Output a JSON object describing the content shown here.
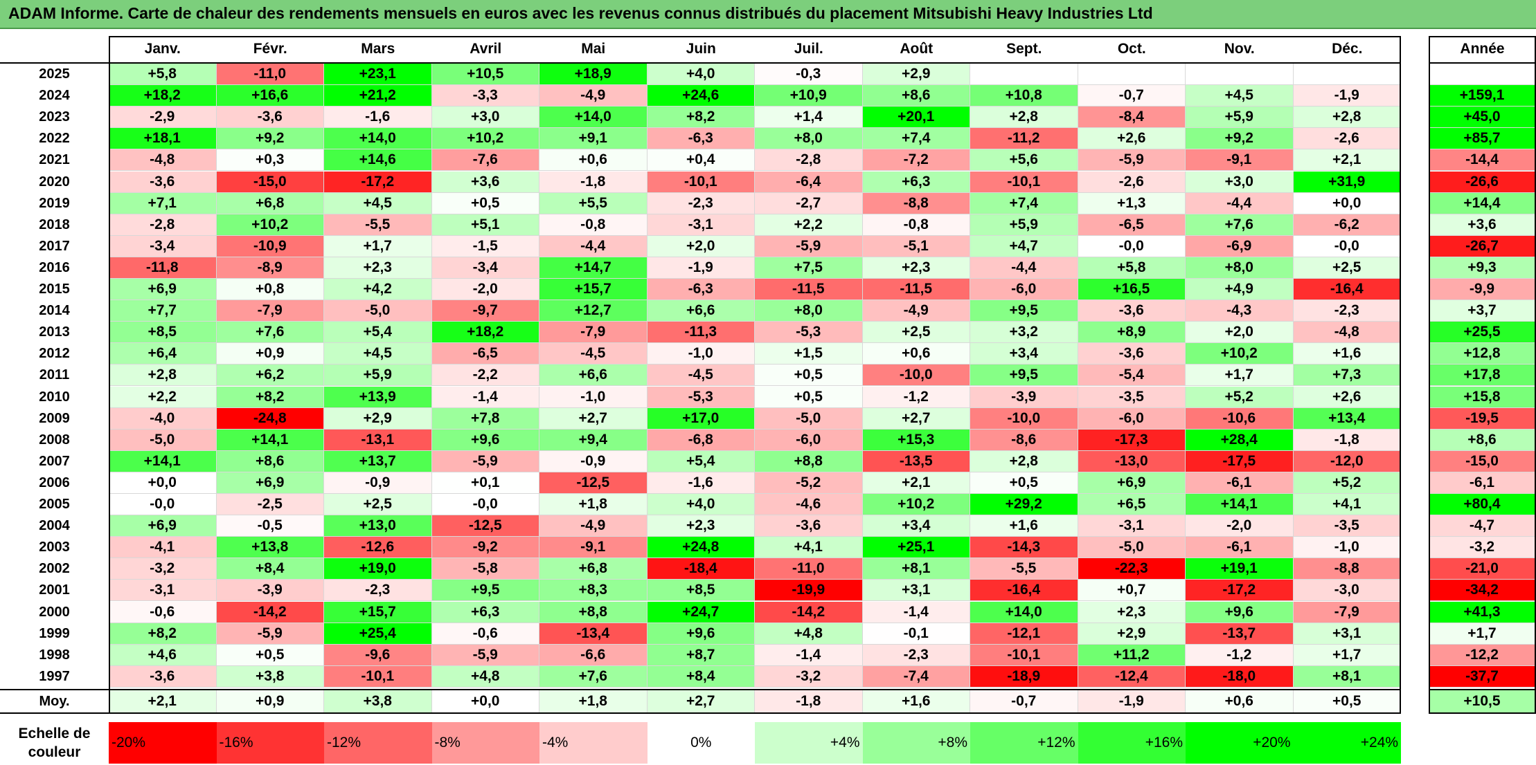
{
  "title": "ADAM Informe. Carte de chaleur des rendements mensuels en euros avec les revenus connus distribués du placement Mitsubishi Heavy Industries Ltd",
  "colors": {
    "title_bg": "#7ccf7c",
    "pos_strong": "#00ff00",
    "neg_strong": "#ff0000",
    "neutral": "#ffffff"
  },
  "chart_data": {
    "type": "heatmap",
    "title": "ADAM Informe. Carte de chaleur des rendements mensuels en euros avec les revenus connus distribués du placement Mitsubishi Heavy Industries Ltd",
    "columns": [
      "Janv.",
      "Févr.",
      "Mars",
      "Avril",
      "Mai",
      "Juin",
      "Juil.",
      "Août",
      "Sept.",
      "Oct.",
      "Nov.",
      "Déc."
    ],
    "year_header": "Année",
    "rows": [
      {
        "year": "2025",
        "values": [
          "+5,8",
          "-11,0",
          "+23,1",
          "+10,5",
          "+18,9",
          "+4,0",
          "-0,3",
          "+2,9",
          "",
          "",
          "",
          ""
        ],
        "annual": ""
      },
      {
        "year": "2024",
        "values": [
          "+18,2",
          "+16,6",
          "+21,2",
          "-3,3",
          "-4,9",
          "+24,6",
          "+10,9",
          "+8,6",
          "+10,8",
          "-0,7",
          "+4,5",
          "-1,9"
        ],
        "annual": "+159,1"
      },
      {
        "year": "2023",
        "values": [
          "-2,9",
          "-3,6",
          "-1,6",
          "+3,0",
          "+14,0",
          "+8,2",
          "+1,4",
          "+20,1",
          "+2,8",
          "-8,4",
          "+5,9",
          "+2,8"
        ],
        "annual": "+45,0"
      },
      {
        "year": "2022",
        "values": [
          "+18,1",
          "+9,2",
          "+14,0",
          "+10,2",
          "+9,1",
          "-6,3",
          "+8,0",
          "+7,4",
          "-11,2",
          "+2,6",
          "+9,2",
          "-2,6"
        ],
        "annual": "+85,7"
      },
      {
        "year": "2021",
        "values": [
          "-4,8",
          "+0,3",
          "+14,6",
          "-7,6",
          "+0,6",
          "+0,4",
          "-2,8",
          "-7,2",
          "+5,6",
          "-5,9",
          "-9,1",
          "+2,1"
        ],
        "annual": "-14,4"
      },
      {
        "year": "2020",
        "values": [
          "-3,6",
          "-15,0",
          "-17,2",
          "+3,6",
          "-1,8",
          "-10,1",
          "-6,4",
          "+6,3",
          "-10,1",
          "-2,6",
          "+3,0",
          "+31,9"
        ],
        "annual": "-26,6"
      },
      {
        "year": "2019",
        "values": [
          "+7,1",
          "+6,8",
          "+4,5",
          "+0,5",
          "+5,5",
          "-2,3",
          "-2,7",
          "-8,8",
          "+7,4",
          "+1,3",
          "-4,4",
          "+0,0"
        ],
        "annual": "+14,4"
      },
      {
        "year": "2018",
        "values": [
          "-2,8",
          "+10,2",
          "-5,5",
          "+5,1",
          "-0,8",
          "-3,1",
          "+2,2",
          "-0,8",
          "+5,9",
          "-6,5",
          "+7,6",
          "-6,2"
        ],
        "annual": "+3,6"
      },
      {
        "year": "2017",
        "values": [
          "-3,4",
          "-10,9",
          "+1,7",
          "-1,5",
          "-4,4",
          "+2,0",
          "-5,9",
          "-5,1",
          "+4,7",
          "-0,0",
          "-6,9",
          "-0,0"
        ],
        "annual": "-26,7"
      },
      {
        "year": "2016",
        "values": [
          "-11,8",
          "-8,9",
          "+2,3",
          "-3,4",
          "+14,7",
          "-1,9",
          "+7,5",
          "+2,3",
          "-4,4",
          "+5,8",
          "+8,0",
          "+2,5"
        ],
        "annual": "+9,3"
      },
      {
        "year": "2015",
        "values": [
          "+6,9",
          "+0,8",
          "+4,2",
          "-2,0",
          "+15,7",
          "-6,3",
          "-11,5",
          "-11,5",
          "-6,0",
          "+16,5",
          "+4,9",
          "-16,4"
        ],
        "annual": "-9,9"
      },
      {
        "year": "2014",
        "values": [
          "+7,7",
          "-7,9",
          "-5,0",
          "-9,7",
          "+12,7",
          "+6,6",
          "+8,0",
          "-4,9",
          "+9,5",
          "-3,6",
          "-4,3",
          "-2,3"
        ],
        "annual": "+3,7"
      },
      {
        "year": "2013",
        "values": [
          "+8,5",
          "+7,6",
          "+5,4",
          "+18,2",
          "-7,9",
          "-11,3",
          "-5,3",
          "+2,5",
          "+3,2",
          "+8,9",
          "+2,0",
          "-4,8"
        ],
        "annual": "+25,5"
      },
      {
        "year": "2012",
        "values": [
          "+6,4",
          "+0,9",
          "+4,5",
          "-6,5",
          "-4,5",
          "-1,0",
          "+1,5",
          "+0,6",
          "+3,4",
          "-3,6",
          "+10,2",
          "+1,6"
        ],
        "annual": "+12,8"
      },
      {
        "year": "2011",
        "values": [
          "+2,8",
          "+6,2",
          "+5,9",
          "-2,2",
          "+6,6",
          "-4,5",
          "+0,5",
          "-10,0",
          "+9,5",
          "-5,4",
          "+1,7",
          "+7,3"
        ],
        "annual": "+17,8"
      },
      {
        "year": "2010",
        "values": [
          "+2,2",
          "+8,2",
          "+13,9",
          "-1,4",
          "-1,0",
          "-5,3",
          "+0,5",
          "-1,2",
          "-3,9",
          "-3,5",
          "+5,2",
          "+2,6"
        ],
        "annual": "+15,8"
      },
      {
        "year": "2009",
        "values": [
          "-4,0",
          "-24,8",
          "+2,9",
          "+7,8",
          "+2,7",
          "+17,0",
          "-5,0",
          "+2,7",
          "-10,0",
          "-6,0",
          "-10,6",
          "+13,4"
        ],
        "annual": "-19,5"
      },
      {
        "year": "2008",
        "values": [
          "-5,0",
          "+14,1",
          "-13,1",
          "+9,6",
          "+9,4",
          "-6,8",
          "-6,0",
          "+15,3",
          "-8,6",
          "-17,3",
          "+28,4",
          "-1,8"
        ],
        "annual": "+8,6"
      },
      {
        "year": "2007",
        "values": [
          "+14,1",
          "+8,6",
          "+13,7",
          "-5,9",
          "-0,9",
          "+5,4",
          "+8,8",
          "-13,5",
          "+2,8",
          "-13,0",
          "-17,5",
          "-12,0"
        ],
        "annual": "-15,0"
      },
      {
        "year": "2006",
        "values": [
          "+0,0",
          "+6,9",
          "-0,9",
          "+0,1",
          "-12,5",
          "-1,6",
          "-5,2",
          "+2,1",
          "+0,5",
          "+6,9",
          "-6,1",
          "+5,2"
        ],
        "annual": "-6,1"
      },
      {
        "year": "2005",
        "values": [
          "-0,0",
          "-2,5",
          "+2,5",
          "-0,0",
          "+1,8",
          "+4,0",
          "-4,6",
          "+10,2",
          "+29,2",
          "+6,5",
          "+14,1",
          "+4,1"
        ],
        "annual": "+80,4"
      },
      {
        "year": "2004",
        "values": [
          "+6,9",
          "-0,5",
          "+13,0",
          "-12,5",
          "-4,9",
          "+2,3",
          "-3,6",
          "+3,4",
          "+1,6",
          "-3,1",
          "-2,0",
          "-3,5"
        ],
        "annual": "-4,7"
      },
      {
        "year": "2003",
        "values": [
          "-4,1",
          "+13,8",
          "-12,6",
          "-9,2",
          "-9,1",
          "+24,8",
          "+4,1",
          "+25,1",
          "-14,3",
          "-5,0",
          "-6,1",
          "-1,0"
        ],
        "annual": "-3,2"
      },
      {
        "year": "2002",
        "values": [
          "-3,2",
          "+8,4",
          "+19,0",
          "-5,8",
          "+6,8",
          "-18,4",
          "-11,0",
          "+8,1",
          "-5,5",
          "-22,3",
          "+19,1",
          "-8,8"
        ],
        "annual": "-21,0"
      },
      {
        "year": "2001",
        "values": [
          "-3,1",
          "-3,9",
          "-2,3",
          "+9,5",
          "+8,3",
          "+8,5",
          "-19,9",
          "+3,1",
          "-16,4",
          "+0,7",
          "-17,2",
          "-3,0"
        ],
        "annual": "-34,2"
      },
      {
        "year": "2000",
        "values": [
          "-0,6",
          "-14,2",
          "+15,7",
          "+6,3",
          "+8,8",
          "+24,7",
          "-14,2",
          "-1,4",
          "+14,0",
          "+2,3",
          "+9,6",
          "-7,9"
        ],
        "annual": "+41,3"
      },
      {
        "year": "1999",
        "values": [
          "+8,2",
          "-5,9",
          "+25,4",
          "-0,6",
          "-13,4",
          "+9,6",
          "+4,8",
          "-0,1",
          "-12,1",
          "+2,9",
          "-13,7",
          "+3,1"
        ],
        "annual": "+1,7"
      },
      {
        "year": "1998",
        "values": [
          "+4,6",
          "+0,5",
          "-9,6",
          "-5,9",
          "-6,6",
          "+8,7",
          "-1,4",
          "-2,3",
          "-10,1",
          "+11,2",
          "-1,2",
          "+1,7"
        ],
        "annual": "-12,2"
      },
      {
        "year": "1997",
        "values": [
          "-3,6",
          "+3,8",
          "-10,1",
          "+4,8",
          "+7,6",
          "+8,4",
          "-3,2",
          "-7,4",
          "-18,9",
          "-12,4",
          "-18,0",
          "+8,1"
        ],
        "annual": "-37,7"
      }
    ],
    "average": {
      "label": "Moy.",
      "values": [
        "+2,1",
        "+0,9",
        "+3,8",
        "+0,0",
        "+1,8",
        "+2,7",
        "-1,8",
        "+1,6",
        "-0,7",
        "-1,9",
        "+0,6",
        "+0,5"
      ],
      "annual": "+10,5"
    },
    "scale": {
      "label_line1": "Echelle de",
      "label_line2": "couleur",
      "stops": [
        "-20%",
        "-16%",
        "-12%",
        "-8%",
        "-4%",
        "0%",
        "+4%",
        "+8%",
        "+12%",
        "+16%",
        "+20%",
        "+24%"
      ],
      "values": [
        -20,
        -16,
        -12,
        -8,
        -4,
        0,
        4,
        8,
        12,
        16,
        20,
        24
      ]
    }
  }
}
